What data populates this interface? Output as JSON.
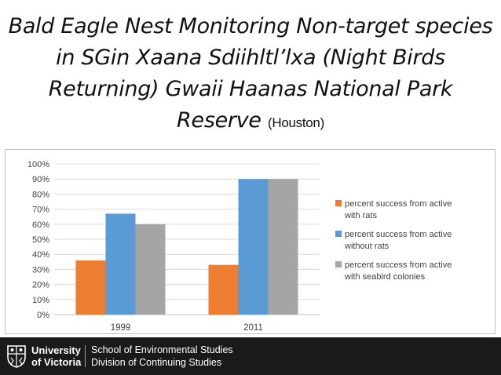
{
  "title": {
    "main": "Bald Eagle Nest Monitoring Non-target species in SGin Xaana Sdiihltl’lxa (Night Birds Returning) Gwaii Haanas National Park Reserve",
    "suffix": "(Houston)"
  },
  "chart_data": {
    "type": "bar",
    "categories": [
      "1999",
      "2011"
    ],
    "series": [
      {
        "name": "percent success  from active with rats",
        "values": [
          36,
          33
        ],
        "color": "#ED7D31"
      },
      {
        "name": "percent  success from active without rats",
        "values": [
          67,
          90
        ],
        "color": "#5B9BD5"
      },
      {
        "name": "percent success from active with seabird colonies",
        "values": [
          60,
          90
        ],
        "color": "#A5A5A5"
      }
    ],
    "ylim": [
      0,
      100
    ],
    "ytick_step": 10,
    "ytick_suffix": "%",
    "grid": true,
    "legend_position": "right"
  },
  "footer": {
    "university_line1": "University",
    "university_line2": "of Victoria",
    "dept_line1": "School of Environmental Studies",
    "dept_line2": "Division of Continuing Studies"
  }
}
